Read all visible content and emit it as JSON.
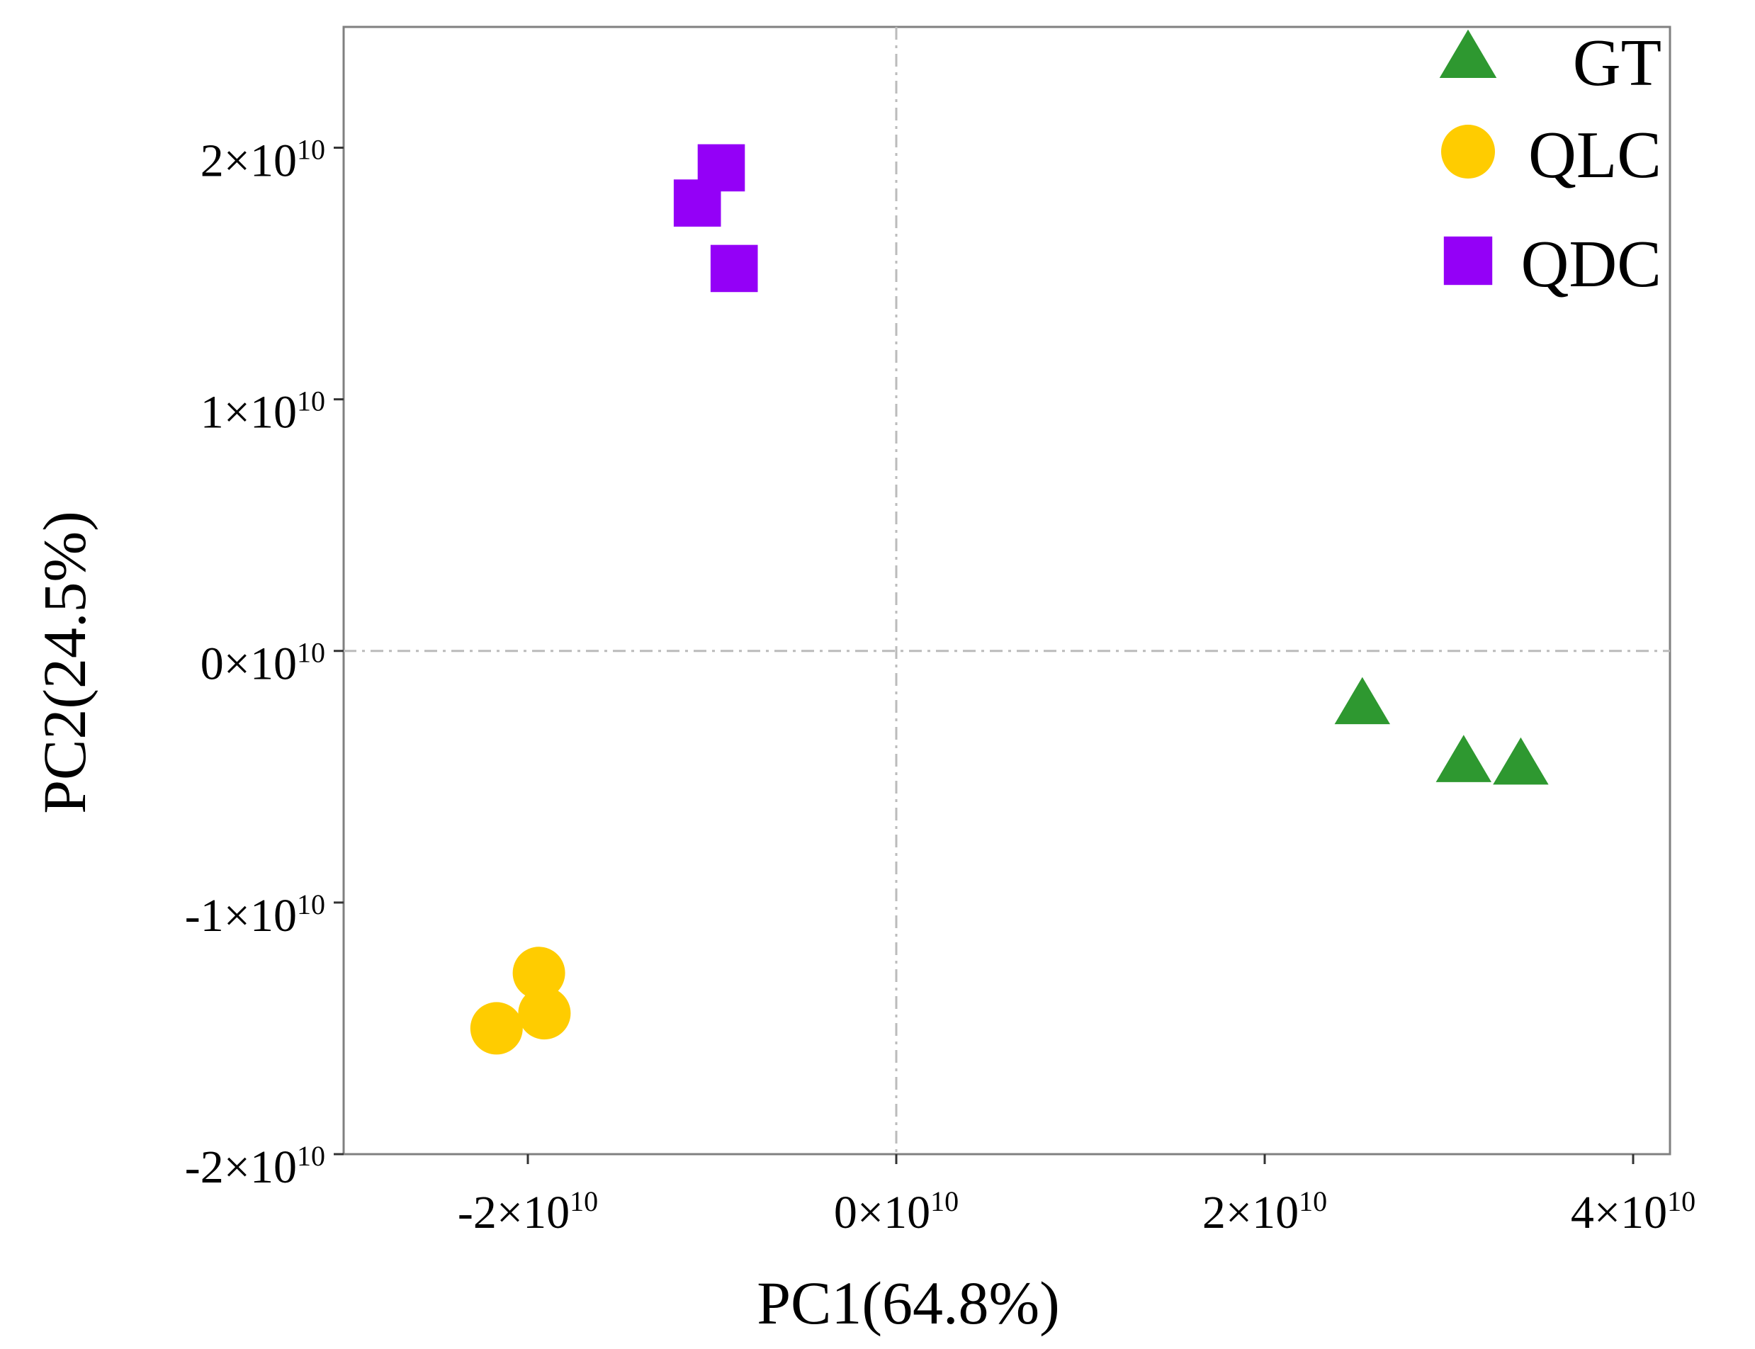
{
  "chart_data": {
    "type": "scatter",
    "title": "",
    "xlabel": "PC1(64.8%)",
    "ylabel": "PC2(24.5%)",
    "xlim": [
      -30000000000.0,
      42000000000.0
    ],
    "ylim": [
      -20000000000.0,
      24800000000.0
    ],
    "x_ticks": [
      {
        "value": -20000000000.0,
        "mantissa": "-2",
        "exp": "10"
      },
      {
        "value": 0,
        "mantissa": "0",
        "exp": "10"
      },
      {
        "value": 20000000000.0,
        "mantissa": "2",
        "exp": "10"
      },
      {
        "value": 40000000000.0,
        "mantissa": "4",
        "exp": "10"
      }
    ],
    "y_ticks": [
      {
        "value": -20000000000.0,
        "mantissa": "-2",
        "exp": "10"
      },
      {
        "value": -10000000000.0,
        "mantissa": "-1",
        "exp": "10"
      },
      {
        "value": 0,
        "mantissa": "0",
        "exp": "10"
      },
      {
        "value": 10000000000.0,
        "mantissa": "1",
        "exp": "10"
      },
      {
        "value": 20000000000.0,
        "mantissa": "2",
        "exp": "10"
      }
    ],
    "reference_lines": {
      "x": 0,
      "y": 0,
      "style": "dash-dot",
      "color": "#bbbbbb"
    },
    "legend_position": "top-right",
    "series": [
      {
        "name": "GT",
        "marker": "triangle",
        "color": "#2e9830",
        "points": [
          {
            "x": 25300000000.0,
            "y": -2200000000.0
          },
          {
            "x": 30800000000.0,
            "y": -4500000000.0
          },
          {
            "x": 33900000000.0,
            "y": -4600000000.0
          }
        ]
      },
      {
        "name": "QLC",
        "marker": "circle",
        "color": "#ffcc00",
        "points": [
          {
            "x": -19400000000.0,
            "y": -12800000000.0
          },
          {
            "x": -19100000000.0,
            "y": -14400000000.0
          },
          {
            "x": -21700000000.0,
            "y": -15000000000.0
          }
        ]
      },
      {
        "name": "QDC",
        "marker": "square",
        "color": "#9400f7",
        "points": [
          {
            "x": -9500000000.0,
            "y": 19200000000.0
          },
          {
            "x": -10800000000.0,
            "y": 17800000000.0
          },
          {
            "x": -8800000000.0,
            "y": 15200000000.0
          }
        ]
      }
    ]
  }
}
